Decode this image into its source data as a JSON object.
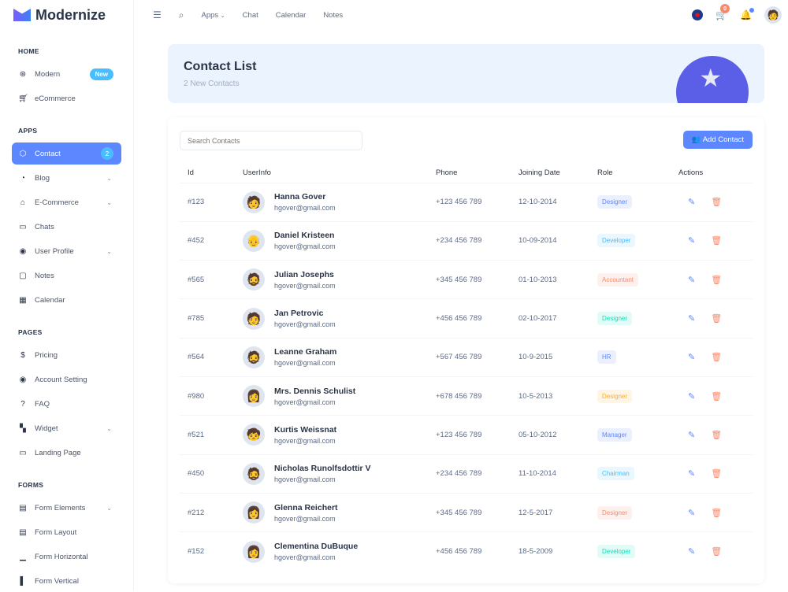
{
  "brand": "Modernize",
  "sidebar": {
    "sections": [
      {
        "title": "HOME",
        "items": [
          {
            "label": "Modern",
            "icon": "aperture-icon",
            "badge": "New"
          },
          {
            "label": "eCommerce",
            "icon": "cart-icon"
          }
        ]
      },
      {
        "title": "APPS",
        "items": [
          {
            "label": "Contact",
            "icon": "box-icon",
            "badge": "2",
            "active": true
          },
          {
            "label": "Blog",
            "icon": "chart-donut-icon",
            "chevron": true
          },
          {
            "label": "E-Commerce",
            "icon": "basket-icon",
            "chevron": true
          },
          {
            "label": "Chats",
            "icon": "message-icon"
          },
          {
            "label": "User Profile",
            "icon": "user-circle-icon",
            "chevron": true
          },
          {
            "label": "Notes",
            "icon": "notes-icon"
          },
          {
            "label": "Calendar",
            "icon": "calendar-icon"
          }
        ]
      },
      {
        "title": "PAGES",
        "items": [
          {
            "label": "Pricing",
            "icon": "currency-dollar-icon"
          },
          {
            "label": "Account Setting",
            "icon": "user-circle-icon"
          },
          {
            "label": "FAQ",
            "icon": "help-icon"
          },
          {
            "label": "Widget",
            "icon": "layout-grid-icon",
            "chevron": true
          },
          {
            "label": "Landing Page",
            "icon": "app-window-icon"
          }
        ]
      },
      {
        "title": "FORMS",
        "items": [
          {
            "label": "Form Elements",
            "icon": "file-text-icon",
            "chevron": true
          },
          {
            "label": "Form Layout",
            "icon": "file-description-icon"
          },
          {
            "label": "Form Horizontal",
            "icon": "box-align-bottom-icon"
          },
          {
            "label": "Form Vertical",
            "icon": "box-align-left-icon"
          }
        ]
      }
    ]
  },
  "topbar": {
    "nav": [
      "Apps",
      "Chat",
      "Calendar",
      "Notes"
    ],
    "cart_count": "0"
  },
  "banner": {
    "title": "Contact List",
    "subtitle": "2 New Contacts"
  },
  "contacts": {
    "search_placeholder": "Search Contacts",
    "add_label": "Add Contact",
    "columns": [
      "Id",
      "UserInfo",
      "Phone",
      "Joining Date",
      "Role",
      "Actions"
    ],
    "rows": [
      {
        "id": "#123",
        "name": "Hanna Gover",
        "email": "hgover@gmail.com",
        "phone": "+123 456 789",
        "date": "12-10-2014",
        "role": "Designer",
        "color": "#5d87ff"
      },
      {
        "id": "#452",
        "name": "Daniel Kristeen",
        "email": "hgover@gmail.com",
        "phone": "+234 456 789",
        "date": "10-09-2014",
        "role": "Developer",
        "color": "#49beff"
      },
      {
        "id": "#565",
        "name": "Julian Josephs",
        "email": "hgover@gmail.com",
        "phone": "+345 456 789",
        "date": "01-10-2013",
        "role": "Accountant",
        "color": "#fa896b"
      },
      {
        "id": "#785",
        "name": "Jan Petrovic",
        "email": "hgover@gmail.com",
        "phone": "+456 456 789",
        "date": "02-10-2017",
        "role": "Designer",
        "color": "#13deb9"
      },
      {
        "id": "#564",
        "name": "Leanne Graham",
        "email": "hgover@gmail.com",
        "phone": "+567 456 789",
        "date": "10-9-2015",
        "role": "HR",
        "color": "#5d87ff"
      },
      {
        "id": "#980",
        "name": "Mrs. Dennis Schulist",
        "email": "hgover@gmail.com",
        "phone": "+678 456 789",
        "date": "10-5-2013",
        "role": "Designer",
        "color": "#ffae1f"
      },
      {
        "id": "#521",
        "name": "Kurtis Weissnat",
        "email": "hgover@gmail.com",
        "phone": "+123 456 789",
        "date": "05-10-2012",
        "role": "Manager",
        "color": "#5d87ff"
      },
      {
        "id": "#450",
        "name": "Nicholas Runolfsdottir V",
        "email": "hgover@gmail.com",
        "phone": "+234 456 789",
        "date": "11-10-2014",
        "role": "Chairman",
        "color": "#49beff"
      },
      {
        "id": "#212",
        "name": "Glenna Reichert",
        "email": "hgover@gmail.com",
        "phone": "+345 456 789",
        "date": "12-5-2017",
        "role": "Designer",
        "color": "#fa896b"
      },
      {
        "id": "#152",
        "name": "Clementina DuBuque",
        "email": "hgover@gmail.com",
        "phone": "+456 456 789",
        "date": "18-5-2009",
        "role": "Developer",
        "color": "#13deb9"
      }
    ]
  }
}
